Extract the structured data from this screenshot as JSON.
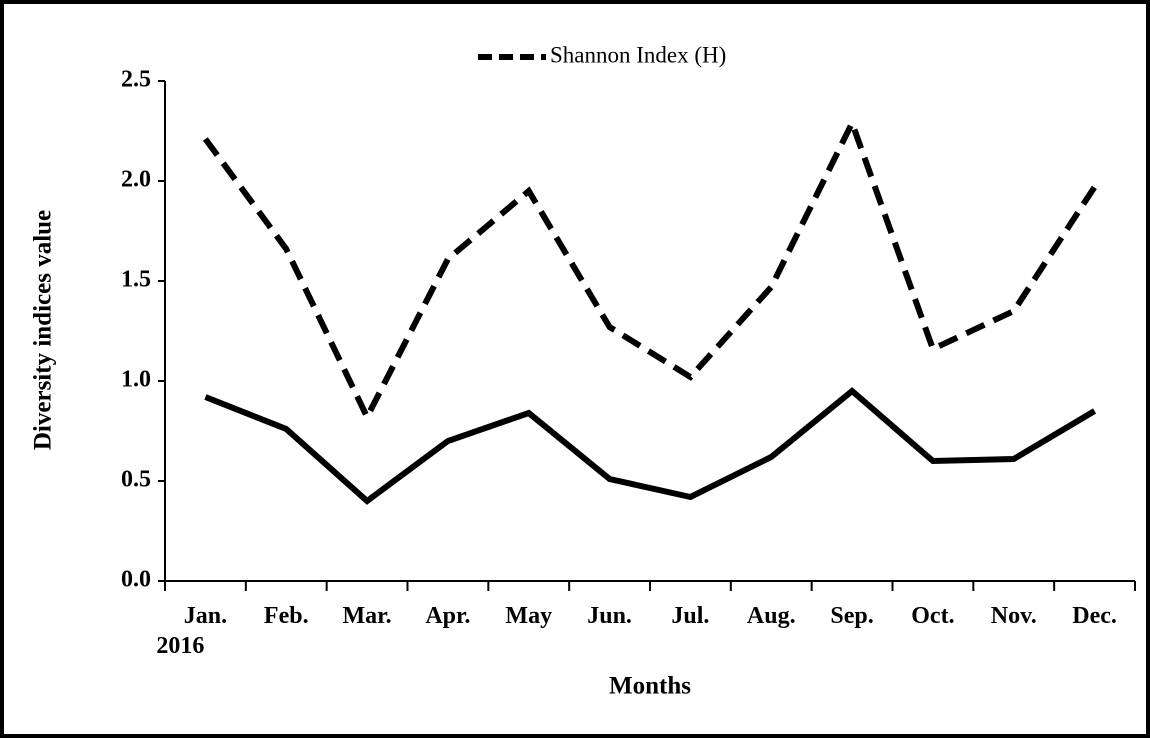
{
  "chart_data": {
    "type": "line",
    "ylabel": "Diversity indices value",
    "xlabel": "Months",
    "categories": [
      "Jan. 2016",
      "Feb.",
      "Mar.",
      "Apr.",
      "May",
      "Jun.",
      "Jul.",
      "Aug.",
      "Sep.",
      "Oct.",
      "Nov.",
      "Dec."
    ],
    "series": [
      {
        "name": "Shannon Index (H)",
        "color": "#000000",
        "dash": true,
        "values": [
          2.21,
          1.66,
          0.82,
          1.61,
          1.95,
          1.27,
          1.02,
          1.47,
          2.29,
          1.16,
          1.35,
          1.97
        ]
      },
      {
        "color": "#000000",
        "dash": false,
        "values": [
          0.92,
          0.76,
          0.4,
          0.7,
          0.84,
          0.51,
          0.42,
          0.62,
          0.95,
          0.6,
          0.61,
          0.85
        ]
      }
    ],
    "ylim": [
      0,
      2.5
    ],
    "yticks": [
      {
        "value": 0,
        "label": "0.0"
      },
      0.5,
      {
        "value": 1,
        "label": "1.0"
      },
      1.5,
      {
        "value": 2,
        "label": "2.0"
      },
      2.5
    ],
    "grid": false,
    "legend": "top"
  }
}
